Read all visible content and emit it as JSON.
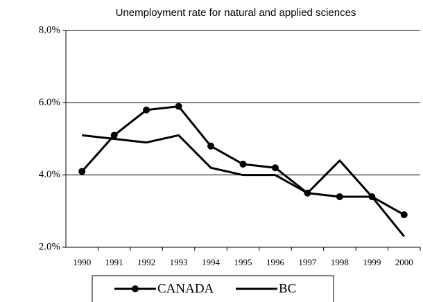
{
  "chart_data": {
    "type": "line",
    "title": "Unemployment rate for natural and applied sciences",
    "categories": [
      "1990",
      "1991",
      "1992",
      "1993",
      "1994",
      "1995",
      "1996",
      "1997",
      "1998",
      "1999",
      "2000"
    ],
    "series": [
      {
        "name": "CANADA",
        "color": "#000000",
        "marker": true,
        "values": [
          4.1,
          5.1,
          5.8,
          5.9,
          4.8,
          4.3,
          4.2,
          3.5,
          3.4,
          3.4,
          2.9
        ]
      },
      {
        "name": "BC",
        "color": "#000000",
        "marker": false,
        "values": [
          5.1,
          5.0,
          4.9,
          5.1,
          4.2,
          4.0,
          4.0,
          3.5,
          4.4,
          3.4,
          2.3
        ]
      }
    ],
    "ylim": [
      2,
      8
    ],
    "yticks": [
      {
        "value": 2,
        "label": "2.0%"
      },
      {
        "value": 4,
        "label": "4.0%"
      },
      {
        "value": 6,
        "label": "6.0%"
      },
      {
        "value": 8,
        "label": "8.0%"
      }
    ],
    "grid": true,
    "legend": "bottom"
  }
}
